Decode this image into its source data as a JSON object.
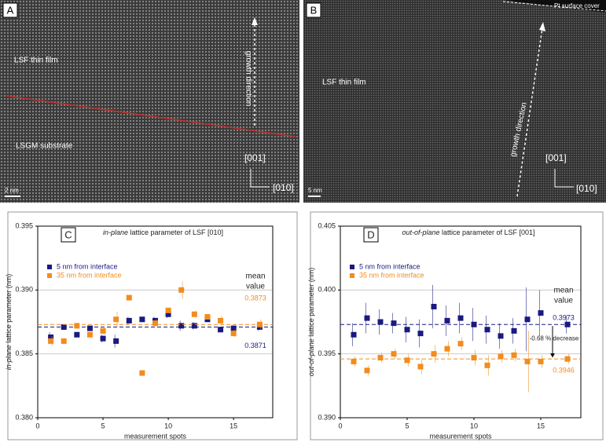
{
  "images": [
    {
      "panel": "A",
      "labels": [
        "LSF thin film",
        "LSGM substrate",
        "growth direction",
        "[001]",
        "[010]",
        "2 nm"
      ]
    },
    {
      "panel": "B",
      "labels": [
        "LSF thin film",
        "growth direction",
        "[001]",
        "[010]",
        "5 nm",
        "Pt surface cover"
      ]
    }
  ],
  "chart_data": [
    {
      "type": "scatter",
      "panel": "C",
      "title_italic": "in-plane",
      "title_rest": " lattice parameter of LSF [010]",
      "xlabel": "measurement spots",
      "ylabel_italic": "in-plane",
      "ylabel_rest": " lattice parameter (nm)",
      "xlim": [
        0,
        18
      ],
      "xticks": [
        0,
        5,
        10,
        15
      ],
      "ylim": [
        0.38,
        0.395
      ],
      "yticks": [
        {
          "value": 0.38,
          "label": "0.380"
        },
        0.385,
        {
          "value": 0.39,
          "label": "0.390"
        },
        0.395
      ],
      "grid": true,
      "mean_heading": [
        "mean",
        "value"
      ],
      "series": [
        {
          "name": "5 nm from interface",
          "color": "#1a1a80",
          "x": [
            1,
            2,
            3,
            4,
            5,
            6,
            7,
            8,
            9,
            10,
            11,
            12,
            13,
            14,
            15,
            17
          ],
          "values": [
            0.3863,
            0.3871,
            0.3865,
            0.387,
            0.3862,
            0.386,
            0.3876,
            0.3877,
            0.3876,
            0.3881,
            0.3872,
            0.3872,
            0.3877,
            0.3869,
            0.387,
            0.3871
          ],
          "errors": [
            0.0004,
            0.0002,
            0.0002,
            0.0002,
            0.0003,
            0.0005,
            0.0003,
            0.0002,
            0.0003,
            0.0003,
            0.0004,
            0.0003,
            0.0002,
            0.0002,
            0.0002,
            0.0003
          ],
          "mean": 0.3871
        },
        {
          "name": "35 nm from interface",
          "color": "#f28c1c",
          "x": [
            1,
            2,
            3,
            4,
            5,
            6,
            7,
            8,
            9,
            10,
            11,
            12,
            13,
            14,
            15,
            17
          ],
          "values": [
            0.386,
            0.386,
            0.3872,
            0.3865,
            0.3868,
            0.3877,
            0.3894,
            0.3835,
            0.3874,
            0.3884,
            0.39,
            0.3881,
            0.3879,
            0.3876,
            0.3866,
            0.3873
          ],
          "errors": [
            0.0004,
            0.0002,
            0.0002,
            0.0002,
            0.0003,
            0.0006,
            0.0002,
            0.0001,
            0.0003,
            0.0002,
            0.0007,
            0.0003,
            0.0002,
            0.0004,
            0.0003,
            0.0004
          ],
          "mean": 0.3873
        }
      ]
    },
    {
      "type": "scatter",
      "panel": "D",
      "title_italic": "out-of-plane",
      "title_rest": " lattice parameter of LSF [001]",
      "xlabel": "measurement spots",
      "ylabel_italic": "out-of-plane",
      "ylabel_rest": " lattice parameter (nm)",
      "xlim": [
        0,
        18
      ],
      "xticks": [
        0,
        5,
        10,
        15
      ],
      "ylim": [
        0.39,
        0.405
      ],
      "yticks": [
        {
          "value": 0.39,
          "label": "0.390"
        },
        0.395,
        {
          "value": 0.4,
          "label": "0.400"
        },
        0.405
      ],
      "grid": true,
      "mean_heading": [
        "mean",
        "value"
      ],
      "note": "-0.68 % decrease",
      "series": [
        {
          "name": "5 nm from interface",
          "color": "#1a1a80",
          "x": [
            1,
            2,
            3,
            4,
            5,
            6,
            7,
            8,
            9,
            10,
            11,
            12,
            13,
            14,
            15,
            17
          ],
          "values": [
            0.3965,
            0.3978,
            0.3975,
            0.3974,
            0.3969,
            0.3966,
            0.3987,
            0.3976,
            0.3978,
            0.3973,
            0.3969,
            0.3964,
            0.3968,
            0.3977,
            0.3982,
            0.3973
          ],
          "errors": [
            0.0009,
            0.0012,
            0.001,
            0.0008,
            0.001,
            0.0011,
            0.0017,
            0.0012,
            0.0012,
            0.0013,
            0.0011,
            0.001,
            0.001,
            0.0025,
            0.0018,
            0.0007
          ],
          "mean": 0.3973
        },
        {
          "name": "35 nm from interface",
          "color": "#f28c1c",
          "x": [
            1,
            2,
            3,
            4,
            5,
            6,
            7,
            8,
            9,
            10,
            11,
            12,
            13,
            14,
            15,
            17
          ],
          "values": [
            0.3944,
            0.3937,
            0.3947,
            0.395,
            0.3945,
            0.394,
            0.395,
            0.3954,
            0.3958,
            0.3947,
            0.3941,
            0.3948,
            0.3949,
            0.3944,
            0.3944,
            0.3946
          ],
          "errors": [
            0.0004,
            0.0004,
            0.0004,
            0.0004,
            0.0005,
            0.0006,
            0.0007,
            0.0006,
            0.0005,
            0.0006,
            0.0008,
            0.0005,
            0.0005,
            0.0024,
            0.0005,
            0.0004
          ],
          "mean": 0.3946
        }
      ]
    }
  ]
}
